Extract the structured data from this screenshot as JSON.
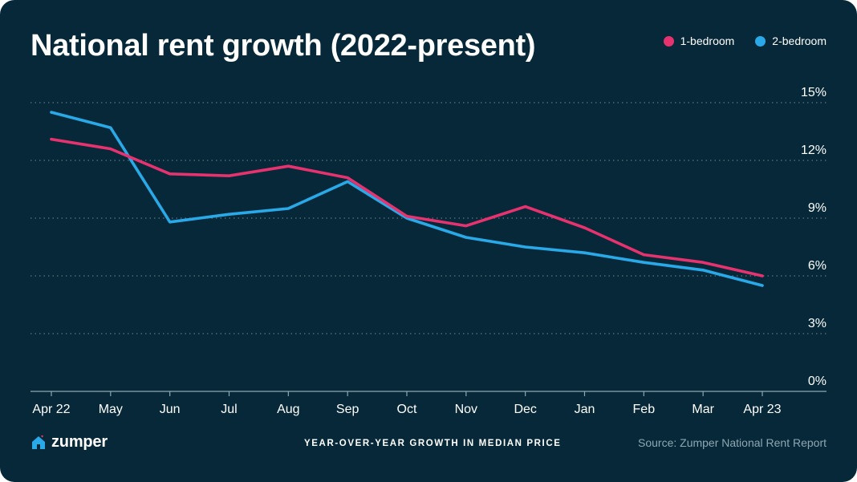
{
  "colors": {
    "background": "#062838",
    "one_bedroom": "#E6336F",
    "two_bedroom": "#29A9E8",
    "grid": "#5d7480",
    "axis": "#8ea7b3"
  },
  "brand": {
    "name": "zumper",
    "icon": "house-heart-icon"
  },
  "footer": {
    "center": "YEAR-OVER-YEAR GROWTH IN MEDIAN PRICE",
    "source": "Source: Zumper National Rent Report"
  },
  "chart_data": {
    "type": "line",
    "title": "National rent growth (2022-present)",
    "xlabel": "",
    "ylabel": "",
    "categories": [
      "Apr 22",
      "May",
      "Jun",
      "Jul",
      "Aug",
      "Sep",
      "Oct",
      "Nov",
      "Dec",
      "Jan",
      "Feb",
      "Mar",
      "Apr 23"
    ],
    "series": [
      {
        "name": "1-bedroom",
        "color": "#E6336F",
        "values": [
          13.1,
          12.6,
          11.3,
          11.2,
          11.7,
          11.1,
          9.1,
          8.6,
          9.6,
          8.5,
          7.1,
          6.7,
          6.0
        ]
      },
      {
        "name": "2-bedroom",
        "color": "#29A9E8",
        "values": [
          14.5,
          13.7,
          8.8,
          9.2,
          9.5,
          10.9,
          9.0,
          8.0,
          7.5,
          7.2,
          6.7,
          6.3,
          5.5
        ]
      }
    ],
    "ylim": [
      0,
      15
    ],
    "yticks": [
      0,
      3,
      6,
      9,
      12,
      15
    ],
    "ytick_labels": [
      "0%",
      "3%",
      "6%",
      "9%",
      "12%",
      "15%"
    ],
    "grid": true,
    "legend": "top-right"
  }
}
